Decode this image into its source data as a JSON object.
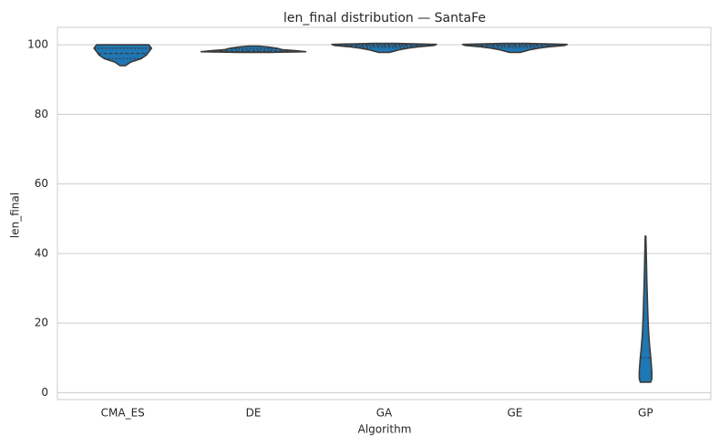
{
  "chart_data": {
    "type": "violin",
    "title": "len_final distribution — SantaFe",
    "xlabel": "Algorithm",
    "ylabel": "len_final",
    "categories": [
      "CMA_ES",
      "DE",
      "GA",
      "GE",
      "GP"
    ],
    "yticks": [
      "0",
      "20",
      "40",
      "60",
      "80",
      "100"
    ],
    "ylim": [
      -2,
      105
    ],
    "grid": true,
    "color": "#1f77b4",
    "edge_color": "#3b3b3b",
    "series": [
      {
        "category": "CMA_ES",
        "min": 94,
        "max": 100,
        "quartiles": [
          96,
          97.5,
          99
        ],
        "profile": [
          [
            94,
            0.05
          ],
          [
            95,
            0.15
          ],
          [
            96,
            0.35
          ],
          [
            97,
            0.45
          ],
          [
            98,
            0.5
          ],
          [
            99,
            0.55
          ],
          [
            100,
            0.5
          ]
        ]
      },
      {
        "category": "DE",
        "min": 97.8,
        "max": 99.6,
        "quartiles": [
          98,
          98.2,
          98.8
        ],
        "profile": [
          [
            97.8,
            0.3
          ],
          [
            98,
            1.0
          ],
          [
            98.3,
            0.8
          ],
          [
            98.6,
            0.55
          ],
          [
            99,
            0.45
          ],
          [
            99.3,
            0.3
          ],
          [
            99.6,
            0.1
          ]
        ]
      },
      {
        "category": "GA",
        "min": 97.8,
        "max": 100.4,
        "quartiles": [
          99.2,
          99.7,
          100
        ],
        "profile": [
          [
            97.8,
            0.1
          ],
          [
            98.2,
            0.2
          ],
          [
            98.6,
            0.3
          ],
          [
            99,
            0.45
          ],
          [
            99.4,
            0.65
          ],
          [
            99.8,
            0.95
          ],
          [
            100.1,
            1.0
          ],
          [
            100.4,
            0.2
          ]
        ]
      },
      {
        "category": "GE",
        "min": 97.8,
        "max": 100.4,
        "quartiles": [
          99.2,
          99.7,
          100
        ],
        "profile": [
          [
            97.8,
            0.1
          ],
          [
            98.2,
            0.2
          ],
          [
            98.6,
            0.3
          ],
          [
            99,
            0.45
          ],
          [
            99.4,
            0.65
          ],
          [
            99.8,
            0.95
          ],
          [
            100.1,
            1.0
          ],
          [
            100.4,
            0.2
          ]
        ]
      },
      {
        "category": "GP",
        "min": 3,
        "max": 45,
        "quartiles": [
          3,
          3,
          10
        ],
        "profile": [
          [
            3,
            0.1
          ],
          [
            4,
            0.12
          ],
          [
            6,
            0.12
          ],
          [
            8,
            0.11
          ],
          [
            10,
            0.1
          ],
          [
            13,
            0.08
          ],
          [
            17,
            0.06
          ],
          [
            22,
            0.045
          ],
          [
            27,
            0.035
          ],
          [
            32,
            0.025
          ],
          [
            37,
            0.018
          ],
          [
            41,
            0.012
          ],
          [
            45,
            0.006
          ]
        ]
      }
    ]
  }
}
